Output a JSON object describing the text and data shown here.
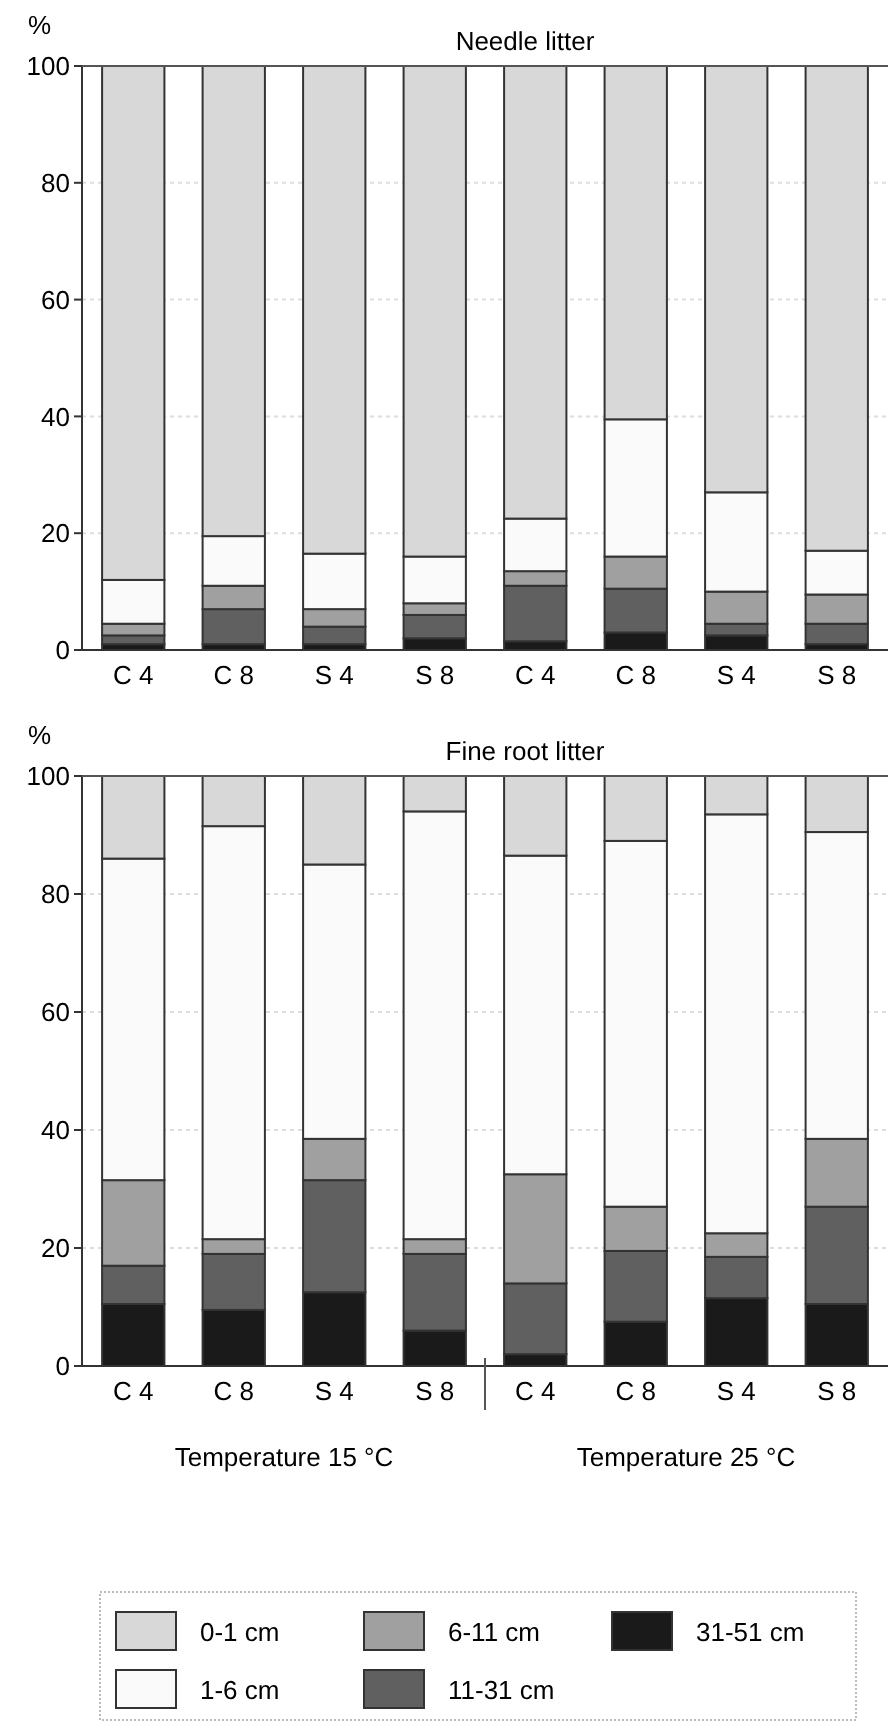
{
  "chart_data": [
    {
      "type": "bar",
      "title": "Needle litter",
      "ylabel": "%",
      "stacked": true,
      "categories": [
        "C 4",
        "C 8",
        "S 4",
        "S 8",
        "C 4",
        "C 8",
        "S 4",
        "S 8"
      ],
      "ylim": [
        0,
        100
      ],
      "yticks": [
        0,
        20,
        40,
        60,
        80,
        100
      ],
      "grid": "y",
      "legend": false,
      "series": [
        {
          "color": "#1a1a1a",
          "values": [
            1,
            1,
            1,
            2,
            1.5,
            3,
            2.5,
            1
          ]
        },
        {
          "color": "#606060",
          "values": [
            1.5,
            6,
            3,
            4,
            9.5,
            7.5,
            2,
            3.5
          ]
        },
        {
          "color": "#a0a0a0",
          "values": [
            2,
            4,
            3,
            2,
            2.5,
            5.5,
            5.5,
            5
          ]
        },
        {
          "color": "#fafafa",
          "values": [
            7.5,
            8.5,
            9.5,
            8,
            9,
            23.5,
            17,
            7.5
          ]
        },
        {
          "color": "#d8d8d8",
          "values": [
            88,
            80.5,
            83.5,
            84,
            77.5,
            60.5,
            73,
            83
          ]
        }
      ]
    },
    {
      "type": "bar",
      "title": "Fine root litter",
      "ylabel": "%",
      "stacked": true,
      "categories": [
        "C 4",
        "C 8",
        "S 4",
        "S 8",
        "C 4",
        "C 8",
        "S 4",
        "S 8"
      ],
      "ylim": [
        0,
        100
      ],
      "yticks": [
        0,
        20,
        40,
        60,
        80,
        100
      ],
      "grid": "y",
      "legend": "bottom",
      "annotations": [
        "Temperature 15 °C",
        "Temperature 25 °C"
      ],
      "series": [
        {
          "name": "31-51 cm",
          "color": "#1a1a1a",
          "values": [
            10.5,
            9.5,
            12.5,
            6,
            2,
            7.5,
            11.5,
            10.5
          ]
        },
        {
          "name": "11-31 cm",
          "color": "#606060",
          "values": [
            6.5,
            9.5,
            19,
            13,
            12,
            12,
            7,
            16.5
          ]
        },
        {
          "name": "6-11 cm",
          "color": "#a0a0a0",
          "values": [
            14.5,
            2.5,
            7,
            2.5,
            18.5,
            7.5,
            4,
            11.5
          ]
        },
        {
          "name": "1-6 cm",
          "color": "#fafafa",
          "values": [
            54.5,
            70,
            46.5,
            72.5,
            54,
            62,
            71,
            52
          ]
        },
        {
          "name": "0-1 cm",
          "color": "#d8d8d8",
          "values": [
            14,
            8.5,
            15,
            6,
            13.5,
            11,
            6.5,
            9.5
          ]
        }
      ]
    }
  ]
}
